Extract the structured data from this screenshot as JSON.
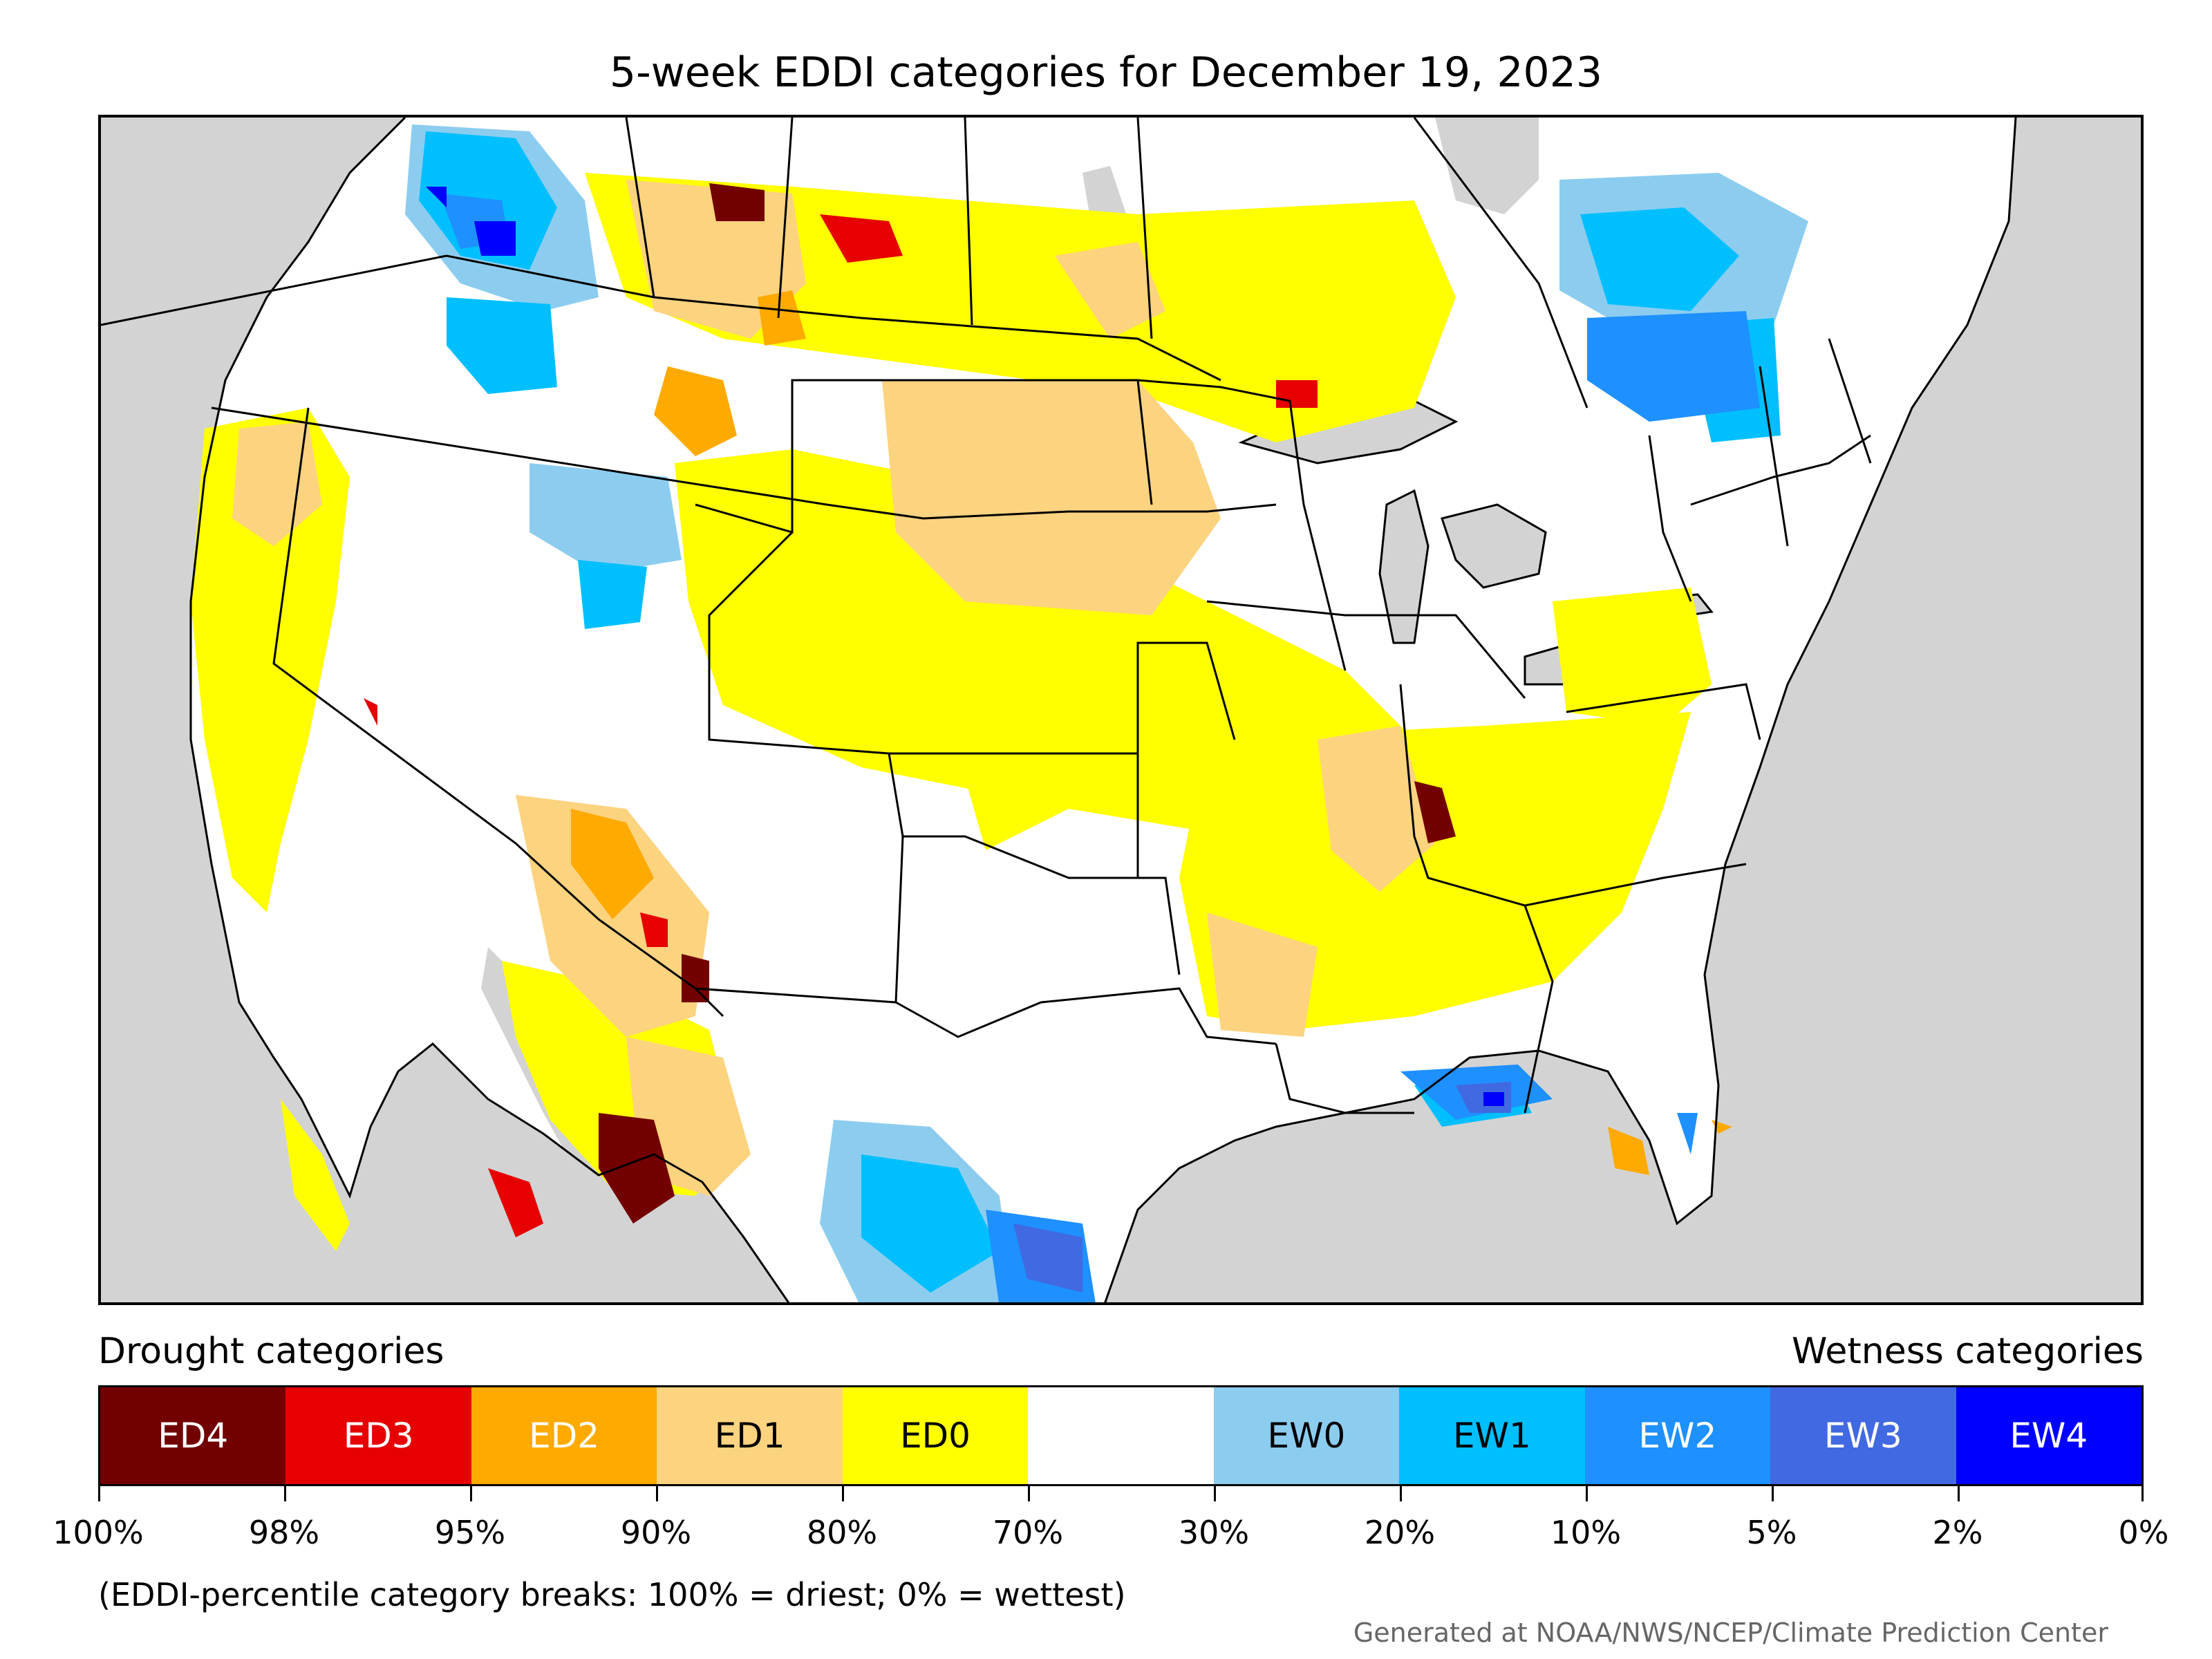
{
  "title": "5-week EDDI categories for December 19, 2023",
  "legend": {
    "left_title": "Drought categories",
    "right_title": "Wetness categories",
    "categories": [
      {
        "label": "ED4",
        "color": "#730000",
        "text_color": "#ffffff"
      },
      {
        "label": "ED3",
        "color": "#e60000",
        "text_color": "#ffffff"
      },
      {
        "label": "ED2",
        "color": "#ffaa00",
        "text_color": "#ffffff"
      },
      {
        "label": "ED1",
        "color": "#fcd37f",
        "text_color": "#000000"
      },
      {
        "label": "ED0",
        "color": "#ffff00",
        "text_color": "#000000"
      },
      {
        "label": "",
        "color": "#ffffff",
        "text_color": "#000000"
      },
      {
        "label": "EW0",
        "color": "#8ccdef",
        "text_color": "#000000"
      },
      {
        "label": "EW1",
        "color": "#00bfff",
        "text_color": "#000000"
      },
      {
        "label": "EW2",
        "color": "#1e90ff",
        "text_color": "#ffffff"
      },
      {
        "label": "EW3",
        "color": "#4169e1",
        "text_color": "#ffffff"
      },
      {
        "label": "EW4",
        "color": "#0000ff",
        "text_color": "#ffffff"
      }
    ],
    "ticks": [
      "100%",
      "98%",
      "95%",
      "90%",
      "80%",
      "70%",
      "30%",
      "20%",
      "10%",
      "5%",
      "2%",
      "0%"
    ]
  },
  "note": "(EDDI-percentile category breaks: 100% = driest; 0% = wettest)",
  "credit": "Generated at NOAA/NWS/NCEP/Climate Prediction Center"
}
